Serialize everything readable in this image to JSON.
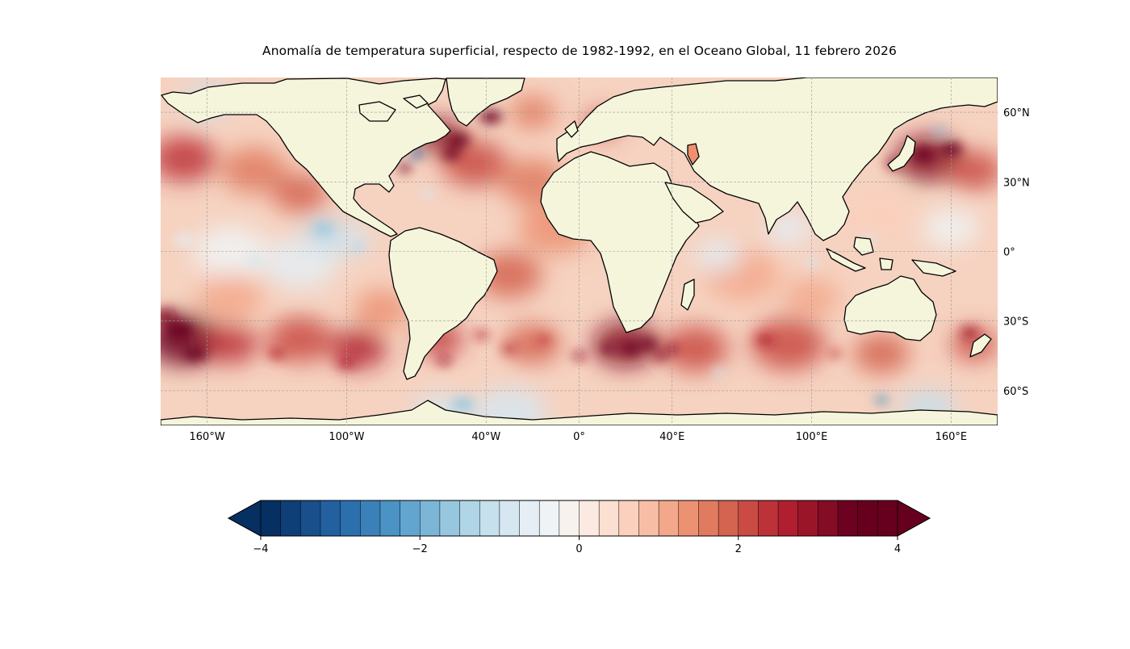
{
  "figure": {
    "title": "Anomalía de temperatura superficial, respecto de 1982-1992, en el Oceano Global, 11 febrero 2026"
  },
  "chart_data": {
    "type": "map",
    "projection": "PlateCarree",
    "variable": "Sea surface temperature anomaly",
    "baseline": "1982-1992",
    "date": "11 febrero 2026",
    "extent": {
      "lon": [
        -180,
        180
      ],
      "lat": [
        -75,
        75
      ]
    },
    "gridlines": true,
    "xticks": [
      {
        "value": -160,
        "label": "160°W"
      },
      {
        "value": -100,
        "label": "100°W"
      },
      {
        "value": -40,
        "label": "40°W"
      },
      {
        "value": 0,
        "label": "0°"
      },
      {
        "value": 40,
        "label": "40°E"
      },
      {
        "value": 100,
        "label": "100°E"
      },
      {
        "value": 160,
        "label": "160°E"
      }
    ],
    "yticks": [
      {
        "value": 60,
        "label": "60°N"
      },
      {
        "value": 30,
        "label": "30°N"
      },
      {
        "value": 0,
        "label": "0°"
      },
      {
        "value": -30,
        "label": "30°S"
      },
      {
        "value": -60,
        "label": "60°S"
      }
    ],
    "land_color": "#f5f5dc",
    "colorbar": {
      "cmap": "RdBu_r",
      "range": [
        -4,
        4
      ],
      "n_levels": 32,
      "extend": "both",
      "ticks": [
        {
          "value": -4,
          "label": "−4"
        },
        {
          "value": -2,
          "label": "−2"
        },
        {
          "value": 0,
          "label": "0"
        },
        {
          "value": 2,
          "label": "2"
        },
        {
          "value": 4,
          "label": "4"
        }
      ],
      "colors": [
        "#053061",
        "#0e3f76",
        "#194f8a",
        "#23609f",
        "#2c6fad",
        "#3b81b9",
        "#4a93c4",
        "#62a5cf",
        "#7bb6d7",
        "#96c7df",
        "#b0d5e7",
        "#c6e0ed",
        "#d6e7f1",
        "#e4eef4",
        "#f0f3f5",
        "#f8f2ee",
        "#faeae1",
        "#fbdfd0",
        "#fbd0bc",
        "#f8bea5",
        "#f3a88b",
        "#ec9273",
        "#e07b5f",
        "#d4634f",
        "#c94b43",
        "#bd3239",
        "#b01f2f",
        "#9b1529",
        "#840c25",
        "#6d0120",
        "#67001f",
        "#67001f"
      ],
      "under_color": "#053061",
      "over_color": "#67001f"
    },
    "notable_anomalies": [
      {
        "region": "Southeast Pacific (30°S–45°S, 180°–150°W)",
        "sign": "warm",
        "magnitude": "strong"
      },
      {
        "region": "South Atlantic / Agulhas (35°S–45°S, 0°–40°E)",
        "sign": "warm",
        "magnitude": "strong"
      },
      {
        "region": "Labrador Sea / Gulf Stream (40°N–60°N, 60°W–40°W)",
        "sign": "warm",
        "magnitude": "strong"
      },
      {
        "region": "Kuroshio extension (35°N–45°N, 140°E–180°)",
        "sign": "warm",
        "magnitude": "strong"
      },
      {
        "region": "Equatorial East Pacific (10°S–5°N, 150°W–80°W)",
        "sign": "cool",
        "magnitude": "weak"
      },
      {
        "region": "Weddell / Ross Sea margin (65°S–75°S)",
        "sign": "cool",
        "magnitude": "moderate"
      }
    ]
  }
}
